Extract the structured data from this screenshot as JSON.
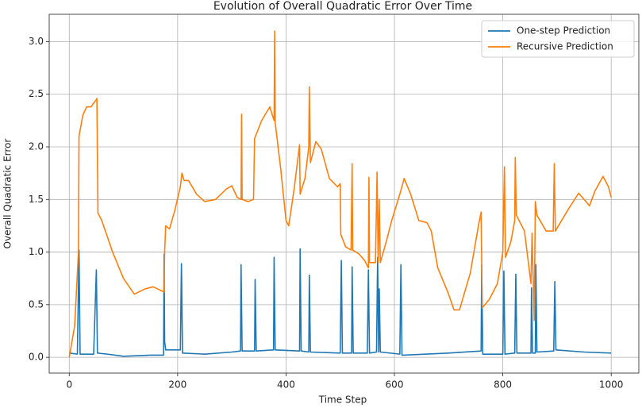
{
  "chart_data": {
    "type": "line",
    "title": "Evolution of Overall Quadratic Error Over Time",
    "xlabel": "Time Step",
    "ylabel": "Overall Quadratic Error",
    "xlim": [
      -37,
      1051
    ],
    "ylim": [
      -0.15,
      3.26
    ],
    "xticks": [
      0,
      200,
      400,
      600,
      800,
      1000
    ],
    "yticks": [
      {
        "value": 0,
        "label": "0.0"
      },
      0.5,
      {
        "value": 1,
        "label": "1.0"
      },
      1.5,
      {
        "value": 2,
        "label": "2.0"
      },
      2.5,
      {
        "value": 3,
        "label": "3.0"
      }
    ],
    "grid": true,
    "legend": "upper right",
    "series": [
      {
        "name": "One-step Prediction",
        "color": "#1f77b4",
        "x": [
          0,
          15,
          18,
          20,
          45,
          50,
          52,
          70,
          100,
          150,
          174,
          175,
          176,
          178,
          205,
          207,
          209,
          250,
          300,
          316,
          317,
          319,
          342,
          343,
          345,
          377,
          378,
          380,
          425,
          426,
          428,
          442,
          443,
          445,
          500,
          502,
          504,
          521,
          522,
          524,
          550,
          552,
          554,
          567,
          569,
          571,
          572,
          574,
          610,
          612,
          614,
          700,
          760,
          761,
          763,
          800,
          802,
          804,
          822,
          824,
          826,
          852,
          853,
          855,
          860,
          861,
          863,
          894,
          896,
          898,
          950,
          1000
        ],
        "values": [
          0.04,
          0.03,
          1.02,
          0.03,
          0.03,
          0.83,
          0.04,
          0.03,
          0.01,
          0.02,
          0.02,
          0.98,
          0.15,
          0.07,
          0.07,
          0.89,
          0.04,
          0.03,
          0.05,
          0.06,
          0.88,
          0.06,
          0.06,
          0.74,
          0.06,
          0.07,
          0.95,
          0.07,
          0.06,
          1.03,
          0.06,
          0.05,
          0.78,
          0.05,
          0.04,
          0.92,
          0.04,
          0.04,
          0.86,
          0.04,
          0.04,
          0.83,
          0.04,
          0.05,
          0.95,
          0.05,
          0.65,
          0.05,
          0.03,
          0.88,
          0.02,
          0.04,
          0.06,
          0.88,
          0.03,
          0.03,
          0.82,
          0.03,
          0.04,
          0.79,
          0.04,
          0.04,
          0.66,
          0.04,
          0.04,
          0.88,
          0.05,
          0.06,
          0.72,
          0.07,
          0.05,
          0.04
        ]
      },
      {
        "name": "Recursive Prediction",
        "color": "#ff7f0e",
        "x": [
          0,
          10,
          17,
          18,
          25,
          32,
          40,
          50,
          51,
          53,
          60,
          80,
          100,
          120,
          140,
          155,
          175,
          176,
          178,
          185,
          195,
          205,
          208,
          212,
          220,
          235,
          250,
          270,
          290,
          300,
          310,
          317,
          318,
          319,
          330,
          340,
          342,
          355,
          370,
          378,
          379,
          380,
          390,
          400,
          405,
          415,
          425,
          426,
          435,
          442,
          443,
          445,
          455,
          465,
          480,
          495,
          500,
          501,
          510,
          520,
          522,
          523,
          535,
          545,
          552,
          553,
          554,
          565,
          568,
          570,
          572,
          574,
          585,
          595,
          610,
          618,
          630,
          645,
          660,
          668,
          680,
          700,
          710,
          720,
          740,
          755,
          760,
          762,
          775,
          790,
          800,
          803,
          805,
          815,
          822,
          823,
          825,
          840,
          852,
          854,
          858,
          860,
          863,
          880,
          893,
          895,
          897,
          920,
          940,
          960,
          970,
          985,
          995,
          1000
        ],
        "values": [
          0,
          0.3,
          1.0,
          2.1,
          2.3,
          2.38,
          2.38,
          2.45,
          2.46,
          1.37,
          1.3,
          1.0,
          0.75,
          0.6,
          0.65,
          0.67,
          0.62,
          1.0,
          1.25,
          1.22,
          1.4,
          1.62,
          1.75,
          1.68,
          1.68,
          1.55,
          1.48,
          1.5,
          1.6,
          1.63,
          1.52,
          1.5,
          2.31,
          1.5,
          1.48,
          1.5,
          2.08,
          2.25,
          2.38,
          2.25,
          3.1,
          2.23,
          1.8,
          1.3,
          1.25,
          1.6,
          2.02,
          1.55,
          1.7,
          2.0,
          2.57,
          1.85,
          2.05,
          1.98,
          1.7,
          1.62,
          1.65,
          1.17,
          1.05,
          1.02,
          1.84,
          1.02,
          0.98,
          0.92,
          0.85,
          1.71,
          0.9,
          0.9,
          1.76,
          0.9,
          1.5,
          0.9,
          1.1,
          1.3,
          1.55,
          1.7,
          1.55,
          1.3,
          1.28,
          1.2,
          0.85,
          0.6,
          0.45,
          0.45,
          0.8,
          1.25,
          1.38,
          0.47,
          0.55,
          0.7,
          1.0,
          1.81,
          0.95,
          1.1,
          1.3,
          1.9,
          1.35,
          1.2,
          0.7,
          1.18,
          0.35,
          1.48,
          1.35,
          1.2,
          1.2,
          1.84,
          1.2,
          1.4,
          1.56,
          1.44,
          1.58,
          1.72,
          1.62,
          1.52
        ]
      }
    ]
  }
}
